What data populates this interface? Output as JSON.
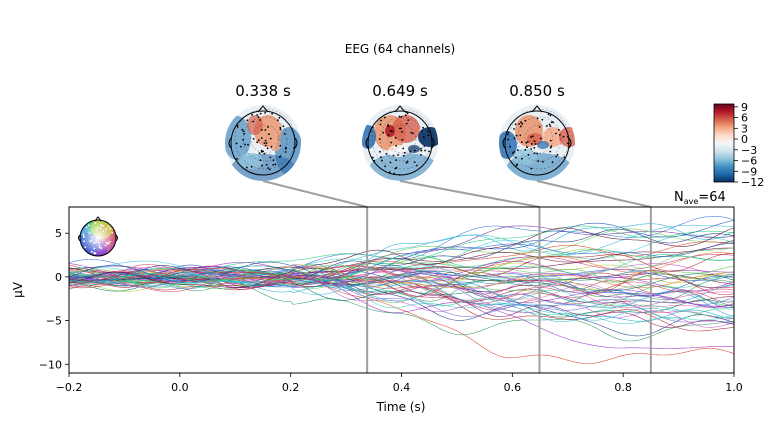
{
  "figure": {
    "title": "EEG (64 channels)",
    "nave_label": "N",
    "nave_sub": "ave",
    "nave_value": "=64"
  },
  "topomaps": [
    {
      "time_label": "0.338 s",
      "time": 0.338
    },
    {
      "time_label": "0.649 s",
      "time": 0.649
    },
    {
      "time_label": "0.850 s",
      "time": 0.85
    }
  ],
  "colorbar": {
    "ticks": [
      "9",
      "6",
      "3",
      "0",
      "−3",
      "−6",
      "−9",
      "−12"
    ],
    "tick_values": [
      9,
      6,
      3,
      0,
      -3,
      -6,
      -9,
      -12
    ],
    "range": [
      -12,
      9.8
    ],
    "colors": [
      "#053061",
      "#2166ac",
      "#4393c3",
      "#92c5de",
      "#d1e5f0",
      "#f7f7f7",
      "#fddbc7",
      "#f4a582",
      "#d6604d",
      "#b2182b",
      "#67001f"
    ]
  },
  "chart_data": {
    "type": "line",
    "title": "EEG (64 channels)",
    "xlabel": "Time (s)",
    "ylabel": "µV",
    "xlim": [
      -0.2,
      1.0
    ],
    "ylim": [
      -11,
      8
    ],
    "xticks": [
      -0.2,
      0.0,
      0.2,
      0.4,
      0.6,
      0.8,
      1.0
    ],
    "xtick_labels": [
      "−0.2",
      "0.0",
      "0.2",
      "0.4",
      "0.6",
      "0.8",
      "1.0"
    ],
    "yticks": [
      5,
      0,
      -5,
      -10
    ],
    "ytick_labels": [
      "5",
      "0",
      "−5",
      "−10"
    ],
    "markers": [
      0.338,
      0.649,
      0.85
    ],
    "n_channels": 64,
    "series_summary": [
      {
        "color": "#3a7bd5",
        "values_at": {
          "-0.2": 1.0,
          "0.0": 0.5,
          "0.2": 0.3,
          "0.4": 3.5,
          "0.6": 5.0,
          "0.8": 5.5,
          "1.0": 5.5
        }
      },
      {
        "color": "#e0442a",
        "values_at": {
          "-0.2": 0.8,
          "0.0": 0.4,
          "0.2": -0.8,
          "0.4": -4.5,
          "0.6": -8.0,
          "0.8": -9.5,
          "1.0": -9.5
        }
      },
      {
        "color": "#9b30c8",
        "values_at": {
          "-0.2": -0.8,
          "0.0": -0.2,
          "0.2": -1.0,
          "0.4": -3.0,
          "0.6": -4.5,
          "0.8": -8.5,
          "1.0": -8.0
        }
      },
      {
        "color": "#2e9c5e",
        "values_at": {
          "-0.2": 0.3,
          "0.0": -0.4,
          "0.2": -1.8,
          "0.4": -5.0,
          "0.6": -5.5,
          "0.8": -6.0,
          "1.0": -6.0
        }
      },
      {
        "color": "#25d07a",
        "values_at": {
          "-0.2": 0.5,
          "0.0": 0.2,
          "0.2": 1.5,
          "0.4": 3.0,
          "0.6": 4.5,
          "0.8": 4.8,
          "1.0": 5.8
        }
      }
    ]
  },
  "head_legend": {
    "label": "sensor-color-legend"
  }
}
